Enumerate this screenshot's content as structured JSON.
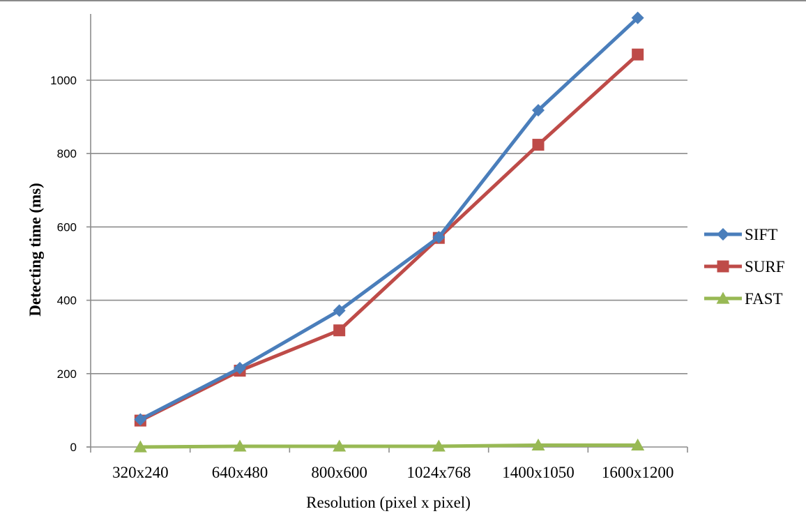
{
  "chart_data": {
    "type": "line",
    "title": "",
    "xlabel": "Resolution (pixel x pixel)",
    "ylabel": "Detecting time (ms)",
    "categories": [
      "320x240",
      "640x480",
      "800x600",
      "1024x768",
      "1400x1050",
      "1600x1200"
    ],
    "y_ticks": [
      "0",
      "200",
      "400",
      "600",
      "800",
      "1000"
    ],
    "ylim": [
      0,
      1170
    ],
    "grid": "horizontal",
    "legend": "right",
    "series": [
      {
        "name": "SIFT",
        "values": [
          75,
          215,
          372,
          572,
          918,
          1170
        ],
        "color": "#4a7ebb",
        "marker": "diamond"
      },
      {
        "name": "SURF",
        "values": [
          72,
          208,
          318,
          570,
          824,
          1070
        ],
        "color": "#be4b48",
        "marker": "square"
      },
      {
        "name": "FAST",
        "values": [
          0,
          2,
          2,
          2,
          5,
          5
        ],
        "color": "#98b954",
        "marker": "triangle"
      }
    ]
  }
}
